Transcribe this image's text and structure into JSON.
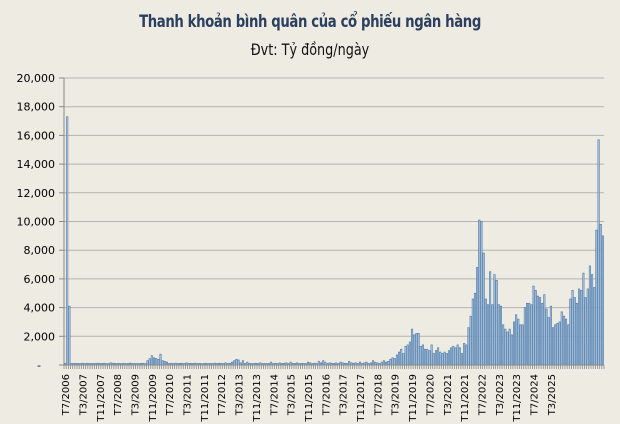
{
  "title": "Thanh khoản bình quân của cổ phiếu ngân hàng",
  "subtitle": "Đvt: Tỷ đồng/ngày",
  "colors": {
    "bar_fill": "#cfe6f7",
    "bar_stroke": "#4f79a8",
    "grid": "#b5b3ad",
    "background": "#eeebe2",
    "title": "#2b3f5e"
  },
  "chart_data": {
    "type": "bar",
    "title": "Thanh khoản bình quân của cổ phiếu ngân hàng",
    "subtitle": "Đvt: Tỷ đồng/ngày",
    "xlabel": "",
    "ylabel": "Tỷ đồng/ngày",
    "ylim": [
      0,
      20000
    ],
    "yticks": [
      0,
      2000,
      4000,
      6000,
      8000,
      10000,
      12000,
      14000,
      16000,
      18000,
      20000
    ],
    "ytick_labels": [
      "-",
      "2,000",
      "4,000",
      "6,000",
      "8,000",
      "10,000",
      "12,000",
      "14,000",
      "16,000",
      "18,000",
      "20,000"
    ],
    "grid": true,
    "legend": null,
    "x_start": "T7/2006",
    "x_frequency": "monthly",
    "xtick_labels": [
      "T7/2006",
      "T3/2007",
      "T11/2007",
      "T7/2008",
      "T3/2009",
      "T11/2009",
      "T7/2010",
      "T3/2011",
      "T11/2011",
      "T7/2012",
      "T3/2013",
      "T11/2013",
      "T7/2014",
      "T3/2015",
      "T11/2015",
      "T7/2016",
      "T3/2017",
      "T11/2017",
      "T7/2018",
      "T3/2019",
      "T11/2019",
      "T7/2020",
      "T3/2021",
      "T11/2021",
      "T7/2022",
      "T3/2023",
      "T11/2023",
      "T7/2024",
      "T3/2025"
    ],
    "values": [
      100,
      17300,
      4100,
      100,
      120,
      100,
      110,
      100,
      130,
      100,
      120,
      100,
      100,
      110,
      100,
      130,
      110,
      100,
      120,
      100,
      100,
      150,
      120,
      110,
      100,
      110,
      100,
      120,
      100,
      100,
      130,
      110,
      100,
      100,
      100,
      110,
      120,
      100,
      300,
      450,
      650,
      500,
      450,
      400,
      750,
      300,
      250,
      200,
      100,
      120,
      100,
      130,
      100,
      110,
      120,
      100,
      150,
      110,
      120,
      100,
      130,
      100,
      110,
      100,
      100,
      120,
      100,
      110,
      100,
      130,
      100,
      120,
      110,
      100,
      150,
      100,
      120,
      200,
      300,
      400,
      350,
      150,
      300,
      100,
      200,
      120,
      100,
      110,
      120,
      100,
      150,
      100,
      110,
      100,
      100,
      200,
      100,
      120,
      100,
      150,
      100,
      120,
      150,
      100,
      200,
      110,
      100,
      150,
      100,
      120,
      110,
      100,
      200,
      150,
      100,
      120,
      100,
      250,
      150,
      300,
      200,
      100,
      150,
      120,
      100,
      150,
      100,
      200,
      150,
      120,
      100,
      250,
      150,
      120,
      150,
      100,
      200,
      100,
      150,
      200,
      100,
      150,
      300,
      200,
      150,
      100,
      200,
      300,
      200,
      250,
      400,
      500,
      450,
      700,
      900,
      1100,
      800,
      1300,
      1400,
      1600,
      2500,
      2100,
      2200,
      2200,
      1300,
      1400,
      1100,
      1100,
      1000,
      1400,
      800,
      1000,
      1200,
      900,
      800,
      900,
      800,
      1000,
      1200,
      1300,
      1200,
      1400,
      1200,
      800,
      1500,
      1400,
      2600,
      3400,
      4600,
      5000,
      6800,
      10100,
      10000,
      7800,
      4600,
      4200,
      6500,
      4200,
      6300,
      5900,
      4200,
      4100,
      2800,
      2500,
      2300,
      2500,
      2100,
      3000,
      3500,
      3200,
      2800,
      2800,
      4000,
      4300,
      4300,
      4200,
      5500,
      5200,
      4800,
      4700,
      4300,
      4900,
      3900,
      3300,
      4100,
      2600,
      2800,
      2900,
      3000,
      3700,
      3400,
      3200,
      2800,
      4600,
      5200,
      4700,
      4300,
      5300,
      5200,
      6400,
      4700,
      5300,
      6900,
      6300,
      5400,
      9400,
      15700,
      9800,
      9000
    ]
  }
}
